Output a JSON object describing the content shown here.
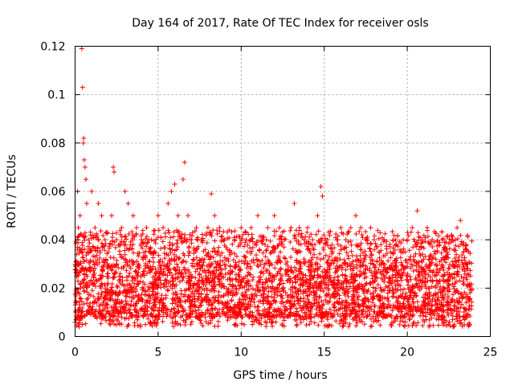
{
  "chart_data": {
    "type": "scatter",
    "title": "Day 164 of 2017, Rate Of TEC Index for receiver osls",
    "xlabel": "GPS time / hours",
    "ylabel": "ROTI / TECUs",
    "xlim": [
      0,
      25
    ],
    "ylim": [
      0,
      0.12
    ],
    "xticks": [
      0,
      5,
      10,
      15,
      20,
      25
    ],
    "xtick_labels": [
      "0",
      "5",
      "10",
      "15",
      "20",
      "25"
    ],
    "yticks": [
      0,
      0.02,
      0.04,
      0.06,
      0.08,
      0.1,
      0.12
    ],
    "ytick_labels": [
      "0",
      "0.02",
      "0.04",
      "0.06",
      "0.08",
      "0.1",
      "0.12"
    ],
    "grid": true,
    "marker": "+",
    "color": "#ff0000",
    "series": [
      {
        "name": "ROTI",
        "points": [
          [
            0.05,
            0.018
          ],
          [
            0.1,
            0.025
          ],
          [
            0.15,
            0.06
          ],
          [
            0.2,
            0.045
          ],
          [
            0.25,
            0.03
          ],
          [
            0.3,
            0.05
          ],
          [
            0.35,
            0.022
          ],
          [
            0.4,
            0.119
          ],
          [
            0.45,
            0.103
          ],
          [
            0.5,
            0.08
          ],
          [
            0.52,
            0.082
          ],
          [
            0.55,
            0.073
          ],
          [
            0.6,
            0.07
          ],
          [
            0.65,
            0.065
          ],
          [
            0.7,
            0.055
          ],
          [
            0.8,
            0.04
          ],
          [
            0.9,
            0.035
          ],
          [
            1.0,
            0.06
          ],
          [
            1.2,
            0.045
          ],
          [
            1.4,
            0.055
          ],
          [
            1.6,
            0.05
          ],
          [
            1.8,
            0.04
          ],
          [
            2.0,
            0.035
          ],
          [
            2.2,
            0.05
          ],
          [
            2.3,
            0.07
          ],
          [
            2.35,
            0.068
          ],
          [
            2.5,
            0.04
          ],
          [
            2.8,
            0.045
          ],
          [
            3.0,
            0.06
          ],
          [
            3.2,
            0.055
          ],
          [
            3.5,
            0.05
          ],
          [
            3.7,
            0.045
          ],
          [
            4.0,
            0.04
          ],
          [
            4.3,
            0.045
          ],
          [
            4.6,
            0.04
          ],
          [
            5.0,
            0.05
          ],
          [
            5.3,
            0.045
          ],
          [
            5.6,
            0.055
          ],
          [
            5.8,
            0.06
          ],
          [
            6.0,
            0.063
          ],
          [
            6.2,
            0.05
          ],
          [
            6.5,
            0.065
          ],
          [
            6.6,
            0.072
          ],
          [
            6.8,
            0.05
          ],
          [
            7.0,
            0.04
          ],
          [
            7.3,
            0.045
          ],
          [
            7.6,
            0.04
          ],
          [
            8.0,
            0.045
          ],
          [
            8.2,
            0.059
          ],
          [
            8.4,
            0.05
          ],
          [
            8.7,
            0.045
          ],
          [
            9.0,
            0.04
          ],
          [
            9.3,
            0.035
          ],
          [
            9.6,
            0.04
          ],
          [
            10.0,
            0.045
          ],
          [
            10.3,
            0.04
          ],
          [
            10.6,
            0.045
          ],
          [
            11.0,
            0.05
          ],
          [
            11.3,
            0.04
          ],
          [
            11.6,
            0.045
          ],
          [
            12.0,
            0.05
          ],
          [
            12.3,
            0.045
          ],
          [
            12.6,
            0.04
          ],
          [
            13.0,
            0.045
          ],
          [
            13.2,
            0.055
          ],
          [
            13.5,
            0.045
          ],
          [
            13.8,
            0.04
          ],
          [
            14.0,
            0.045
          ],
          [
            14.3,
            0.04
          ],
          [
            14.6,
            0.05
          ],
          [
            14.8,
            0.062
          ],
          [
            14.9,
            0.058
          ],
          [
            15.2,
            0.04
          ],
          [
            15.5,
            0.035
          ],
          [
            15.8,
            0.04
          ],
          [
            16.0,
            0.045
          ],
          [
            16.3,
            0.04
          ],
          [
            16.6,
            0.045
          ],
          [
            16.9,
            0.05
          ],
          [
            17.2,
            0.045
          ],
          [
            17.5,
            0.04
          ],
          [
            17.8,
            0.045
          ],
          [
            18.0,
            0.04
          ],
          [
            18.3,
            0.035
          ],
          [
            18.6,
            0.04
          ],
          [
            19.0,
            0.035
          ],
          [
            19.3,
            0.04
          ],
          [
            19.6,
            0.035
          ],
          [
            20.0,
            0.04
          ],
          [
            20.3,
            0.045
          ],
          [
            20.6,
            0.052
          ],
          [
            20.9,
            0.04
          ],
          [
            21.2,
            0.045
          ],
          [
            21.5,
            0.04
          ],
          [
            21.8,
            0.035
          ],
          [
            22.1,
            0.04
          ],
          [
            22.4,
            0.035
          ],
          [
            22.7,
            0.04
          ],
          [
            23.0,
            0.045
          ],
          [
            23.2,
            0.048
          ],
          [
            23.4,
            0.035
          ],
          [
            23.6,
            0.03
          ],
          [
            23.8,
            0.025
          ]
        ],
        "dense_band": {
          "x_range": [
            0,
            23.9
          ],
          "typical_low": 0.008,
          "typical_high": 0.032,
          "min": 0.004
        }
      }
    ]
  }
}
